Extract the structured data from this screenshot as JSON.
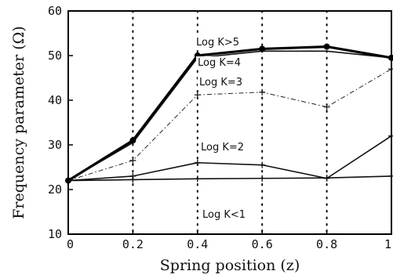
{
  "chart_data": {
    "type": "line",
    "title": "",
    "xlabel": "Spring position (z)",
    "ylabel": "Frequency parameter (Ω)",
    "xlim": [
      0,
      1
    ],
    "ylim": [
      10,
      60
    ],
    "x": [
      0,
      0.2,
      0.4,
      0.6,
      0.8,
      1.0
    ],
    "x_ticks": [
      "0",
      "0.2",
      "0.4",
      "0.6",
      "0.8",
      "1"
    ],
    "y_ticks": [
      "10",
      "20",
      "30",
      "40",
      "50",
      "60"
    ],
    "grid": "vertical dotted lines at x ticks",
    "series": [
      {
        "name": "Log K>5",
        "values": [
          22,
          31,
          50,
          51.5,
          52,
          49.5
        ],
        "line": "thick solid",
        "marker": "filled-circle",
        "color": "#000000"
      },
      {
        "name": "Log K=4",
        "values": [
          22,
          30.5,
          49.5,
          51,
          51,
          49.5
        ],
        "line": "solid",
        "marker": "none",
        "color": "#111111"
      },
      {
        "name": "Log K=3",
        "values": [
          22,
          26.5,
          41.2,
          41.8,
          38.5,
          47
        ],
        "line": "thin dash-dot",
        "marker": "plus",
        "color": "#222222"
      },
      {
        "name": "Log K=2",
        "values": [
          22,
          23,
          26,
          25.5,
          22.5,
          32
        ],
        "line": "solid",
        "marker": "plus",
        "color": "#111111"
      },
      {
        "name": "Log K<1",
        "values": [
          22,
          22.2,
          22.4,
          22.5,
          22.6,
          23
        ],
        "line": "solid",
        "marker": "plus",
        "color": "#111111"
      }
    ]
  }
}
